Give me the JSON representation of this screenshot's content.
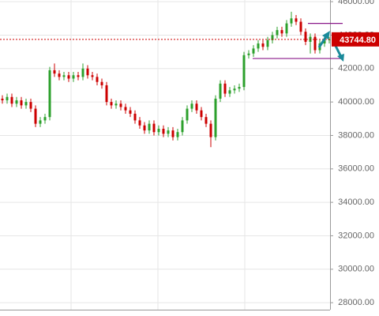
{
  "chart_data": {
    "type": "candlestick",
    "open": [
      40200,
      40100,
      40300,
      39900,
      40100,
      39800,
      40000,
      39600,
      38700,
      38900,
      39100,
      41900,
      41700,
      41500,
      41600,
      41400,
      41600,
      41500,
      42000,
      41600,
      41500,
      41200,
      41000,
      40000,
      39800,
      39900,
      39700,
      39500,
      39300,
      38900,
      38600,
      38300,
      38700,
      38200,
      38400,
      38100,
      38300,
      37900,
      38200,
      38900,
      39600,
      39900,
      39500,
      39100,
      38700,
      37900,
      40200,
      41100,
      40500,
      40700,
      40800,
      40900,
      42800,
      42900,
      43200,
      43500,
      43300,
      43700,
      44000,
      44300,
      44100,
      44700,
      45000,
      44800,
      44200,
      43600,
      43900,
      43100,
      43500,
      43700
    ],
    "high": [
      40400,
      40500,
      40500,
      40300,
      40300,
      40200,
      40200,
      39800,
      39100,
      39300,
      42100,
      42300,
      41900,
      41800,
      41800,
      41800,
      41800,
      42300,
      42200,
      41800,
      41700,
      41400,
      41200,
      40200,
      40100,
      40100,
      39900,
      39700,
      39500,
      39100,
      38800,
      38900,
      38900,
      38600,
      38600,
      38500,
      38500,
      38400,
      39100,
      39800,
      40100,
      40100,
      39700,
      39300,
      38900,
      40400,
      41300,
      41300,
      40900,
      41000,
      41100,
      43000,
      43100,
      43400,
      43700,
      43700,
      43900,
      44200,
      44500,
      44500,
      44900,
      45400,
      45200,
      45000,
      44400,
      44100,
      44100,
      43700,
      43900,
      43900
    ],
    "low": [
      39900,
      39900,
      39700,
      39700,
      39600,
      39600,
      39400,
      38500,
      38500,
      38700,
      38900,
      41500,
      41300,
      41300,
      41200,
      41200,
      41300,
      41300,
      41400,
      41300,
      41000,
      40800,
      39800,
      39600,
      39600,
      39500,
      39300,
      39100,
      38700,
      38400,
      38100,
      38100,
      38000,
      38000,
      37900,
      37900,
      37700,
      37700,
      38000,
      38700,
      39400,
      39300,
      38900,
      38500,
      37300,
      37700,
      40000,
      40300,
      40300,
      40500,
      40600,
      40700,
      42600,
      42700,
      43000,
      43100,
      43100,
      43500,
      43800,
      43900,
      43900,
      44500,
      44600,
      44000,
      43400,
      42900,
      42900,
      42900,
      43300,
      43500
    ],
    "close": [
      40100,
      40300,
      39900,
      40100,
      39800,
      40000,
      39600,
      38700,
      38900,
      39100,
      41900,
      41700,
      41500,
      41600,
      41400,
      41600,
      41500,
      42000,
      41600,
      41500,
      41200,
      41000,
      40000,
      39800,
      39900,
      39700,
      39500,
      39300,
      38900,
      38600,
      38300,
      38700,
      38200,
      38400,
      38100,
      38300,
      37900,
      38200,
      38900,
      39600,
      39900,
      39500,
      39100,
      38700,
      37900,
      40200,
      41100,
      40500,
      40700,
      40800,
      40900,
      42800,
      42900,
      43200,
      43500,
      43300,
      43700,
      44000,
      44300,
      44100,
      44700,
      45000,
      44800,
      44200,
      43600,
      43900,
      43100,
      43500,
      43700,
      43744.8
    ],
    "up_color": "#2ca02c",
    "down_color": "#cc0000",
    "ylim": [
      27600,
      46100
    ],
    "yticks": [
      {
        "value": 28000,
        "label": "28000.00"
      },
      {
        "value": 30000,
        "label": "30000.00"
      },
      {
        "value": 32000,
        "label": "32000.00"
      },
      {
        "value": 34000,
        "label": "34000.00"
      },
      {
        "value": 36000,
        "label": "36000.00"
      },
      {
        "value": 38000,
        "label": "38000.00"
      },
      {
        "value": 40000,
        "label": "40000.00"
      },
      {
        "value": 42000,
        "label": "42000.00"
      },
      {
        "value": 44000,
        "label": "44000.00"
      },
      {
        "value": 46000,
        "label": "46000.00"
      }
    ],
    "grid": true,
    "last_price": {
      "value": 43744.8,
      "label": "43744.80",
      "color": "#cc0000"
    },
    "levels": [
      {
        "value": 44700,
        "color": "#8b1a8b"
      },
      {
        "value": 42600,
        "color": "#8b1a8b"
      }
    ]
  }
}
